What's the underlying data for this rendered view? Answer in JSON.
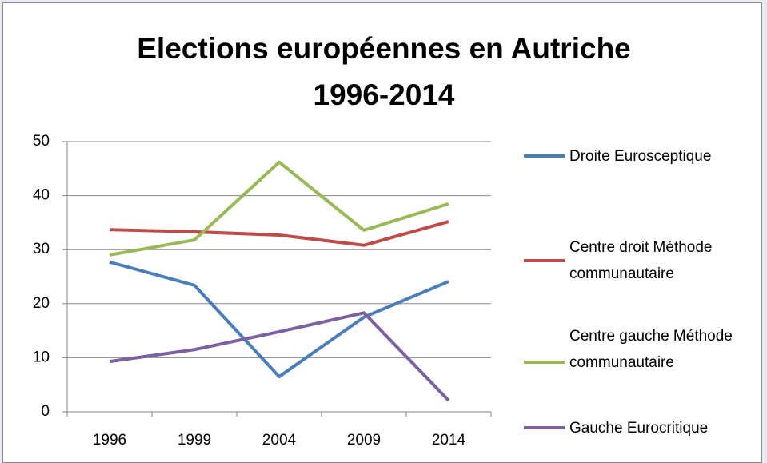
{
  "chart_data": {
    "type": "line",
    "title": "Elections européennes en Autriche 1996-2014",
    "categories": [
      "1996",
      "1999",
      "2004",
      "2009",
      "2014"
    ],
    "series": [
      {
        "name": "Droite Eurosceptique",
        "color": "#4a7ebb",
        "values": [
          27.7,
          23.4,
          6.5,
          17.5,
          24.1
        ]
      },
      {
        "name": "Centre droit Méthode communautaire",
        "color": "#be4b48",
        "values": [
          33.7,
          33.3,
          32.7,
          30.8,
          35.2
        ]
      },
      {
        "name": "Centre gauche Méthode communautaire",
        "color": "#98b954",
        "values": [
          29.0,
          31.8,
          46.2,
          33.6,
          38.5
        ]
      },
      {
        "name": "Gauche Eurocritique",
        "color": "#7d60a0",
        "values": [
          9.3,
          11.5,
          14.8,
          18.3,
          2.1
        ]
      }
    ],
    "ylim": [
      0,
      50
    ],
    "yticks": [
      0,
      10,
      20,
      30,
      40,
      50
    ],
    "grid": true,
    "legend": "right"
  }
}
